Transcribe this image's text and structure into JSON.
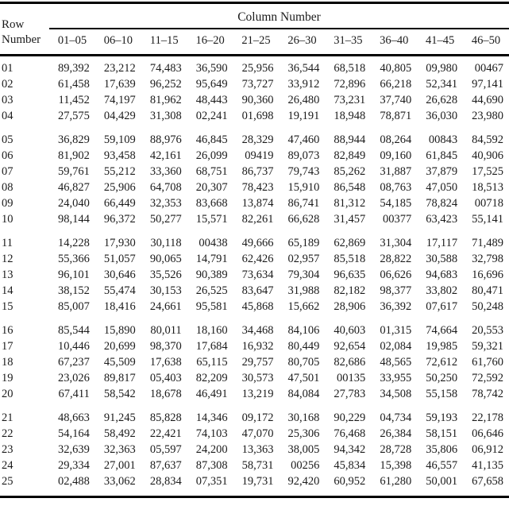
{
  "table": {
    "title": "Column Number",
    "row_header_line1": "Row",
    "row_header_line2": "Number",
    "columns": [
      "01–05",
      "06–10",
      "11–15",
      "16–20",
      "21–25",
      "26–30",
      "31–35",
      "36–40",
      "41–45",
      "46–50"
    ],
    "groups": [
      {
        "rows": [
          {
            "row": "01",
            "values": [
              "89,392",
              "23,212",
              "74,483",
              "36,590",
              "25,956",
              "36,544",
              "68,518",
              "40,805",
              "09,980",
              "00467"
            ]
          },
          {
            "row": "02",
            "values": [
              "61,458",
              "17,639",
              "96,252",
              "95,649",
              "73,727",
              "33,912",
              "72,896",
              "66,218",
              "52,341",
              "97,141"
            ]
          },
          {
            "row": "03",
            "values": [
              "11,452",
              "74,197",
              "81,962",
              "48,443",
              "90,360",
              "26,480",
              "73,231",
              "37,740",
              "26,628",
              "44,690"
            ]
          },
          {
            "row": "04",
            "values": [
              "27,575",
              "04,429",
              "31,308",
              "02,241",
              "01,698",
              "19,191",
              "18,948",
              "78,871",
              "36,030",
              "23,980"
            ]
          }
        ]
      },
      {
        "rows": [
          {
            "row": "05",
            "values": [
              "36,829",
              "59,109",
              "88,976",
              "46,845",
              "28,329",
              "47,460",
              "88,944",
              "08,264",
              "00843",
              "84,592"
            ]
          },
          {
            "row": "06",
            "values": [
              "81,902",
              "93,458",
              "42,161",
              "26,099",
              "09419",
              "89,073",
              "82,849",
              "09,160",
              "61,845",
              "40,906"
            ]
          },
          {
            "row": "07",
            "values": [
              "59,761",
              "55,212",
              "33,360",
              "68,751",
              "86,737",
              "79,743",
              "85,262",
              "31,887",
              "37,879",
              "17,525"
            ]
          },
          {
            "row": "08",
            "values": [
              "46,827",
              "25,906",
              "64,708",
              "20,307",
              "78,423",
              "15,910",
              "86,548",
              "08,763",
              "47,050",
              "18,513"
            ]
          },
          {
            "row": "09",
            "values": [
              "24,040",
              "66,449",
              "32,353",
              "83,668",
              "13,874",
              "86,741",
              "81,312",
              "54,185",
              "78,824",
              "00718"
            ]
          },
          {
            "row": "10",
            "values": [
              "98,144",
              "96,372",
              "50,277",
              "15,571",
              "82,261",
              "66,628",
              "31,457",
              "00377",
              "63,423",
              "55,141"
            ]
          }
        ]
      },
      {
        "rows": [
          {
            "row": "11",
            "values": [
              "14,228",
              "17,930",
              "30,118",
              "00438",
              "49,666",
              "65,189",
              "62,869",
              "31,304",
              "17,117",
              "71,489"
            ]
          },
          {
            "row": "12",
            "values": [
              "55,366",
              "51,057",
              "90,065",
              "14,791",
              "62,426",
              "02,957",
              "85,518",
              "28,822",
              "30,588",
              "32,798"
            ]
          },
          {
            "row": "13",
            "values": [
              "96,101",
              "30,646",
              "35,526",
              "90,389",
              "73,634",
              "79,304",
              "96,635",
              "06,626",
              "94,683",
              "16,696"
            ]
          },
          {
            "row": "14",
            "values": [
              "38,152",
              "55,474",
              "30,153",
              "26,525",
              "83,647",
              "31,988",
              "82,182",
              "98,377",
              "33,802",
              "80,471"
            ]
          },
          {
            "row": "15",
            "values": [
              "85,007",
              "18,416",
              "24,661",
              "95,581",
              "45,868",
              "15,662",
              "28,906",
              "36,392",
              "07,617",
              "50,248"
            ]
          }
        ]
      },
      {
        "rows": [
          {
            "row": "16",
            "values": [
              "85,544",
              "15,890",
              "80,011",
              "18,160",
              "34,468",
              "84,106",
              "40,603",
              "01,315",
              "74,664",
              "20,553"
            ]
          },
          {
            "row": "17",
            "values": [
              "10,446",
              "20,699",
              "98,370",
              "17,684",
              "16,932",
              "80,449",
              "92,654",
              "02,084",
              "19,985",
              "59,321"
            ]
          },
          {
            "row": "18",
            "values": [
              "67,237",
              "45,509",
              "17,638",
              "65,115",
              "29,757",
              "80,705",
              "82,686",
              "48,565",
              "72,612",
              "61,760"
            ]
          },
          {
            "row": "19",
            "values": [
              "23,026",
              "89,817",
              "05,403",
              "82,209",
              "30,573",
              "47,501",
              "00135",
              "33,955",
              "50,250",
              "72,592"
            ]
          },
          {
            "row": "20",
            "values": [
              "67,411",
              "58,542",
              "18,678",
              "46,491",
              "13,219",
              "84,084",
              "27,783",
              "34,508",
              "55,158",
              "78,742"
            ]
          }
        ]
      },
      {
        "rows": [
          {
            "row": "21",
            "values": [
              "48,663",
              "91,245",
              "85,828",
              "14,346",
              "09,172",
              "30,168",
              "90,229",
              "04,734",
              "59,193",
              "22,178"
            ]
          },
          {
            "row": "22",
            "values": [
              "54,164",
              "58,492",
              "22,421",
              "74,103",
              "47,070",
              "25,306",
              "76,468",
              "26,384",
              "58,151",
              "06,646"
            ]
          },
          {
            "row": "23",
            "values": [
              "32,639",
              "32,363",
              "05,597",
              "24,200",
              "13,363",
              "38,005",
              "94,342",
              "28,728",
              "35,806",
              "06,912"
            ]
          },
          {
            "row": "24",
            "values": [
              "29,334",
              "27,001",
              "87,637",
              "87,308",
              "58,731",
              "00256",
              "45,834",
              "15,398",
              "46,557",
              "41,135"
            ]
          },
          {
            "row": "25",
            "values": [
              "02,488",
              "33,062",
              "28,834",
              "07,351",
              "19,731",
              "92,420",
              "60,952",
              "61,280",
              "50,001",
              "67,658"
            ]
          }
        ]
      }
    ]
  }
}
